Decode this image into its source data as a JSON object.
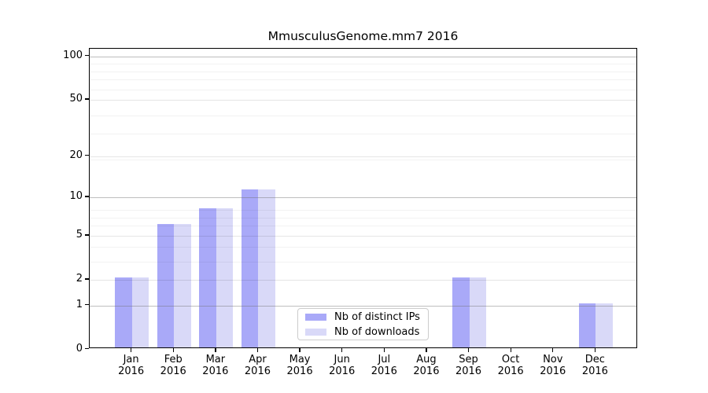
{
  "chart_data": {
    "type": "bar",
    "title": "MmusculusGenome.mm7 2016",
    "categories": [
      "Jan 2016",
      "Feb 2016",
      "Mar 2016",
      "Apr 2016",
      "May 2016",
      "Jun 2016",
      "Jul 2016",
      "Aug 2016",
      "Sep 2016",
      "Oct 2016",
      "Nov 2016",
      "Dec 2016"
    ],
    "series": [
      {
        "name": "Nb of distinct IPs",
        "color": "#a9a9f8",
        "values": [
          2,
          6,
          8,
          11,
          0,
          0,
          0,
          0,
          2,
          0,
          0,
          1
        ]
      },
      {
        "name": "Nb of downloads",
        "color": "#d9d9f8",
        "values": [
          2,
          6,
          8,
          11,
          0,
          0,
          0,
          0,
          2,
          0,
          0,
          1
        ]
      }
    ],
    "xlabel": "",
    "ylabel": "",
    "y_scale": "log10(value+1)",
    "y_tick_labels": [
      0,
      1,
      2,
      5,
      10,
      20,
      50,
      100
    ],
    "y_major_gridlines": [
      1,
      10,
      100
    ],
    "y_labeled_gridlines": [
      2,
      5,
      20,
      50
    ],
    "y_minor_gridlines": [
      3,
      4,
      6,
      7,
      8,
      19,
      29,
      39,
      59,
      69,
      79,
      89
    ],
    "ylim": [
      0,
      112
    ],
    "grid": true,
    "legend_position": "lower-center-left",
    "bar_colors": {
      "distinct_ips": "#a9a9f8",
      "downloads": "#d9d9f8"
    },
    "axis_color": "#000000"
  },
  "legend": {
    "items": [
      {
        "label": "Nb of distinct IPs",
        "color": "#a9a9f8"
      },
      {
        "label": "Nb of downloads",
        "color": "#d9d9f8"
      }
    ]
  }
}
